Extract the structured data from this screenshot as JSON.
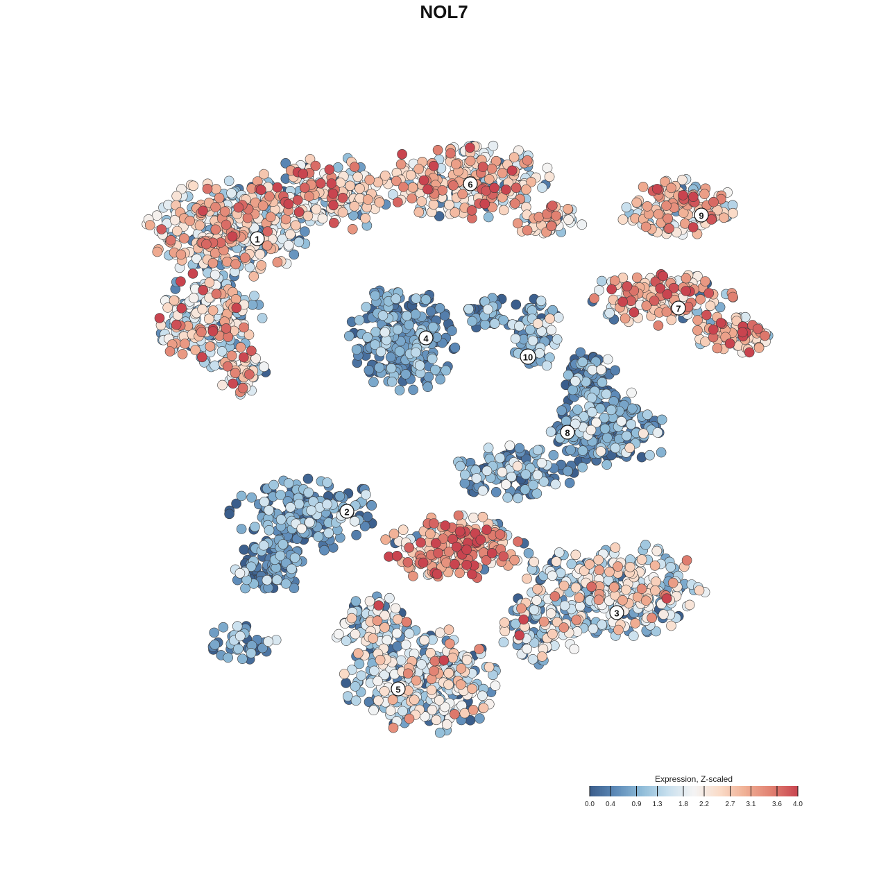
{
  "title": "NOL7",
  "chart_data": {
    "type": "scatter",
    "title": "NOL7",
    "description_color_scale": "Expression, Z-scaled",
    "legend": {
      "title": "Expression, Z-scaled",
      "placement": "bottom-right",
      "ticks": [
        0.0,
        0.4,
        0.9,
        1.3,
        1.8,
        2.2,
        2.7,
        3.1,
        3.6,
        4.0
      ],
      "tick_labels": [
        "0.0",
        "0.4",
        "0.9",
        "1.3",
        "1.8",
        "2.2",
        "2.7",
        "3.1",
        "3.6",
        "4.0"
      ],
      "range": [
        0.0,
        4.0
      ],
      "colors": [
        "#3b5e8c",
        "#5d8ab8",
        "#8fbcd8",
        "#c7dfee",
        "#f4f4f4",
        "#fadbc8",
        "#f0ae93",
        "#e07f70",
        "#c9444f"
      ]
    },
    "clusters": [
      {
        "label": "1",
        "mean_expression": 2.1,
        "spread": 1.0
      },
      {
        "label": "2",
        "mean_expression": 0.6,
        "spread": 0.6
      },
      {
        "label": "3",
        "mean_expression": 1.6,
        "spread": 0.9
      },
      {
        "label": "4",
        "mean_expression": 0.5,
        "spread": 0.5
      },
      {
        "label": "5",
        "mean_expression": 1.5,
        "spread": 0.9
      },
      {
        "label": "6",
        "mean_expression": 2.5,
        "spread": 0.8
      },
      {
        "label": "7",
        "mean_expression": 2.6,
        "spread": 0.8
      },
      {
        "label": "8",
        "mean_expression": 0.6,
        "spread": 0.6
      },
      {
        "label": "9",
        "mean_expression": 2.4,
        "spread": 0.8
      },
      {
        "label": "10",
        "mean_expression": 1.0,
        "spread": 0.8
      },
      {
        "label": "",
        "mean_expression": 3.0,
        "spread": 0.8
      }
    ],
    "grid": false,
    "axes_visible": false
  }
}
